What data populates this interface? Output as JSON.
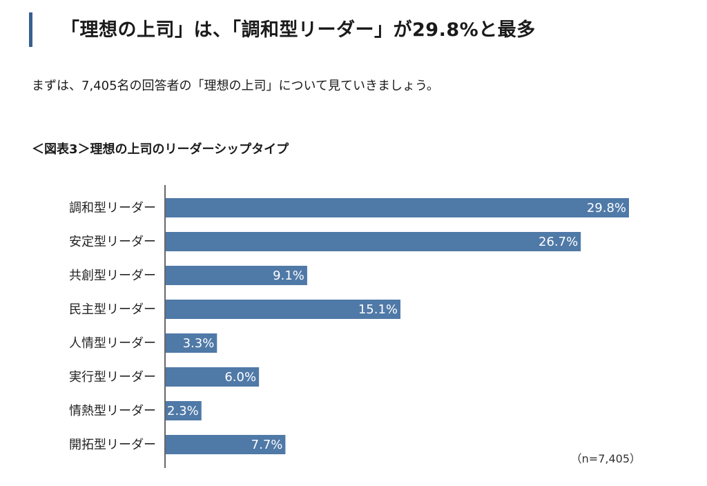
{
  "header": {
    "title": "「理想の上司」は、「調和型リーダー」が29.8%と最多"
  },
  "intro": {
    "text": "まずは、7,405名の回答者の「理想の上司」について見ていきましょう。"
  },
  "chart_data": {
    "type": "bar",
    "orientation": "horizontal",
    "title": "＜図表3＞理想の上司のリーダーシップタイプ",
    "categories": [
      "調和型リーダー",
      "安定型リーダー",
      "共創型リーダー",
      "民主型リーダー",
      "人情型リーダー",
      "実行型リーダー",
      "情熱型リーダー",
      "開拓型リーダー"
    ],
    "values": [
      29.8,
      26.7,
      9.1,
      15.1,
      3.3,
      6.0,
      2.3,
      7.7
    ],
    "value_labels": [
      "29.8%",
      "26.7%",
      "9.1%",
      "15.1%",
      "3.3%",
      "6.0%",
      "2.3%",
      "7.7%"
    ],
    "unit": "%",
    "xlim": [
      0,
      40
    ],
    "grid": false,
    "bar_color": "#4f79a7",
    "note": "（n=7,405）"
  },
  "colors": {
    "accent": "#3a5f8f",
    "bar": "#4f79a7"
  }
}
